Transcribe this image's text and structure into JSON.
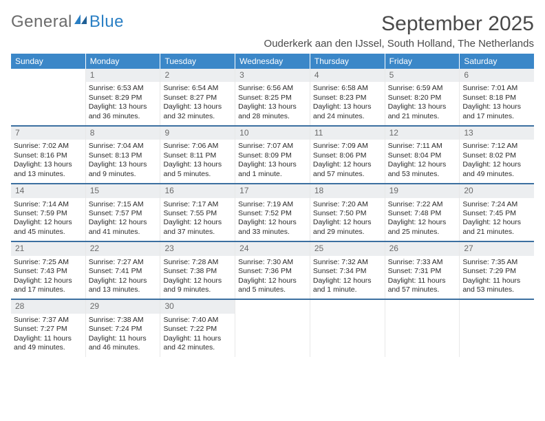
{
  "logo": {
    "part1": "General",
    "part2": "Blue"
  },
  "title": "September 2025",
  "location": "Ouderkerk aan den IJssel, South Holland, The Netherlands",
  "colors": {
    "header_bg": "#3b87c8",
    "header_text": "#ffffff",
    "daynum_bg": "#eceef0",
    "daynum_text": "#6a6a6a",
    "week_divider": "#3b6fa0",
    "body_text": "#2a2a2a",
    "title_text": "#4a4a4a",
    "logo_gray": "#6a6a6a",
    "logo_blue": "#2a7fc4",
    "page_bg": "#ffffff"
  },
  "day_headers": [
    "Sunday",
    "Monday",
    "Tuesday",
    "Wednesday",
    "Thursday",
    "Friday",
    "Saturday"
  ],
  "weeks": [
    [
      {
        "n": "",
        "sr": "",
        "ss": "",
        "dl": ""
      },
      {
        "n": "1",
        "sr": "Sunrise: 6:53 AM",
        "ss": "Sunset: 8:29 PM",
        "dl": "Daylight: 13 hours and 36 minutes."
      },
      {
        "n": "2",
        "sr": "Sunrise: 6:54 AM",
        "ss": "Sunset: 8:27 PM",
        "dl": "Daylight: 13 hours and 32 minutes."
      },
      {
        "n": "3",
        "sr": "Sunrise: 6:56 AM",
        "ss": "Sunset: 8:25 PM",
        "dl": "Daylight: 13 hours and 28 minutes."
      },
      {
        "n": "4",
        "sr": "Sunrise: 6:58 AM",
        "ss": "Sunset: 8:23 PM",
        "dl": "Daylight: 13 hours and 24 minutes."
      },
      {
        "n": "5",
        "sr": "Sunrise: 6:59 AM",
        "ss": "Sunset: 8:20 PM",
        "dl": "Daylight: 13 hours and 21 minutes."
      },
      {
        "n": "6",
        "sr": "Sunrise: 7:01 AM",
        "ss": "Sunset: 8:18 PM",
        "dl": "Daylight: 13 hours and 17 minutes."
      }
    ],
    [
      {
        "n": "7",
        "sr": "Sunrise: 7:02 AM",
        "ss": "Sunset: 8:16 PM",
        "dl": "Daylight: 13 hours and 13 minutes."
      },
      {
        "n": "8",
        "sr": "Sunrise: 7:04 AM",
        "ss": "Sunset: 8:13 PM",
        "dl": "Daylight: 13 hours and 9 minutes."
      },
      {
        "n": "9",
        "sr": "Sunrise: 7:06 AM",
        "ss": "Sunset: 8:11 PM",
        "dl": "Daylight: 13 hours and 5 minutes."
      },
      {
        "n": "10",
        "sr": "Sunrise: 7:07 AM",
        "ss": "Sunset: 8:09 PM",
        "dl": "Daylight: 13 hours and 1 minute."
      },
      {
        "n": "11",
        "sr": "Sunrise: 7:09 AM",
        "ss": "Sunset: 8:06 PM",
        "dl": "Daylight: 12 hours and 57 minutes."
      },
      {
        "n": "12",
        "sr": "Sunrise: 7:11 AM",
        "ss": "Sunset: 8:04 PM",
        "dl": "Daylight: 12 hours and 53 minutes."
      },
      {
        "n": "13",
        "sr": "Sunrise: 7:12 AM",
        "ss": "Sunset: 8:02 PM",
        "dl": "Daylight: 12 hours and 49 minutes."
      }
    ],
    [
      {
        "n": "14",
        "sr": "Sunrise: 7:14 AM",
        "ss": "Sunset: 7:59 PM",
        "dl": "Daylight: 12 hours and 45 minutes."
      },
      {
        "n": "15",
        "sr": "Sunrise: 7:15 AM",
        "ss": "Sunset: 7:57 PM",
        "dl": "Daylight: 12 hours and 41 minutes."
      },
      {
        "n": "16",
        "sr": "Sunrise: 7:17 AM",
        "ss": "Sunset: 7:55 PM",
        "dl": "Daylight: 12 hours and 37 minutes."
      },
      {
        "n": "17",
        "sr": "Sunrise: 7:19 AM",
        "ss": "Sunset: 7:52 PM",
        "dl": "Daylight: 12 hours and 33 minutes."
      },
      {
        "n": "18",
        "sr": "Sunrise: 7:20 AM",
        "ss": "Sunset: 7:50 PM",
        "dl": "Daylight: 12 hours and 29 minutes."
      },
      {
        "n": "19",
        "sr": "Sunrise: 7:22 AM",
        "ss": "Sunset: 7:48 PM",
        "dl": "Daylight: 12 hours and 25 minutes."
      },
      {
        "n": "20",
        "sr": "Sunrise: 7:24 AM",
        "ss": "Sunset: 7:45 PM",
        "dl": "Daylight: 12 hours and 21 minutes."
      }
    ],
    [
      {
        "n": "21",
        "sr": "Sunrise: 7:25 AM",
        "ss": "Sunset: 7:43 PM",
        "dl": "Daylight: 12 hours and 17 minutes."
      },
      {
        "n": "22",
        "sr": "Sunrise: 7:27 AM",
        "ss": "Sunset: 7:41 PM",
        "dl": "Daylight: 12 hours and 13 minutes."
      },
      {
        "n": "23",
        "sr": "Sunrise: 7:28 AM",
        "ss": "Sunset: 7:38 PM",
        "dl": "Daylight: 12 hours and 9 minutes."
      },
      {
        "n": "24",
        "sr": "Sunrise: 7:30 AM",
        "ss": "Sunset: 7:36 PM",
        "dl": "Daylight: 12 hours and 5 minutes."
      },
      {
        "n": "25",
        "sr": "Sunrise: 7:32 AM",
        "ss": "Sunset: 7:34 PM",
        "dl": "Daylight: 12 hours and 1 minute."
      },
      {
        "n": "26",
        "sr": "Sunrise: 7:33 AM",
        "ss": "Sunset: 7:31 PM",
        "dl": "Daylight: 11 hours and 57 minutes."
      },
      {
        "n": "27",
        "sr": "Sunrise: 7:35 AM",
        "ss": "Sunset: 7:29 PM",
        "dl": "Daylight: 11 hours and 53 minutes."
      }
    ],
    [
      {
        "n": "28",
        "sr": "Sunrise: 7:37 AM",
        "ss": "Sunset: 7:27 PM",
        "dl": "Daylight: 11 hours and 49 minutes."
      },
      {
        "n": "29",
        "sr": "Sunrise: 7:38 AM",
        "ss": "Sunset: 7:24 PM",
        "dl": "Daylight: 11 hours and 46 minutes."
      },
      {
        "n": "30",
        "sr": "Sunrise: 7:40 AM",
        "ss": "Sunset: 7:22 PM",
        "dl": "Daylight: 11 hours and 42 minutes."
      },
      {
        "n": "",
        "sr": "",
        "ss": "",
        "dl": ""
      },
      {
        "n": "",
        "sr": "",
        "ss": "",
        "dl": ""
      },
      {
        "n": "",
        "sr": "",
        "ss": "",
        "dl": ""
      },
      {
        "n": "",
        "sr": "",
        "ss": "",
        "dl": ""
      }
    ]
  ]
}
